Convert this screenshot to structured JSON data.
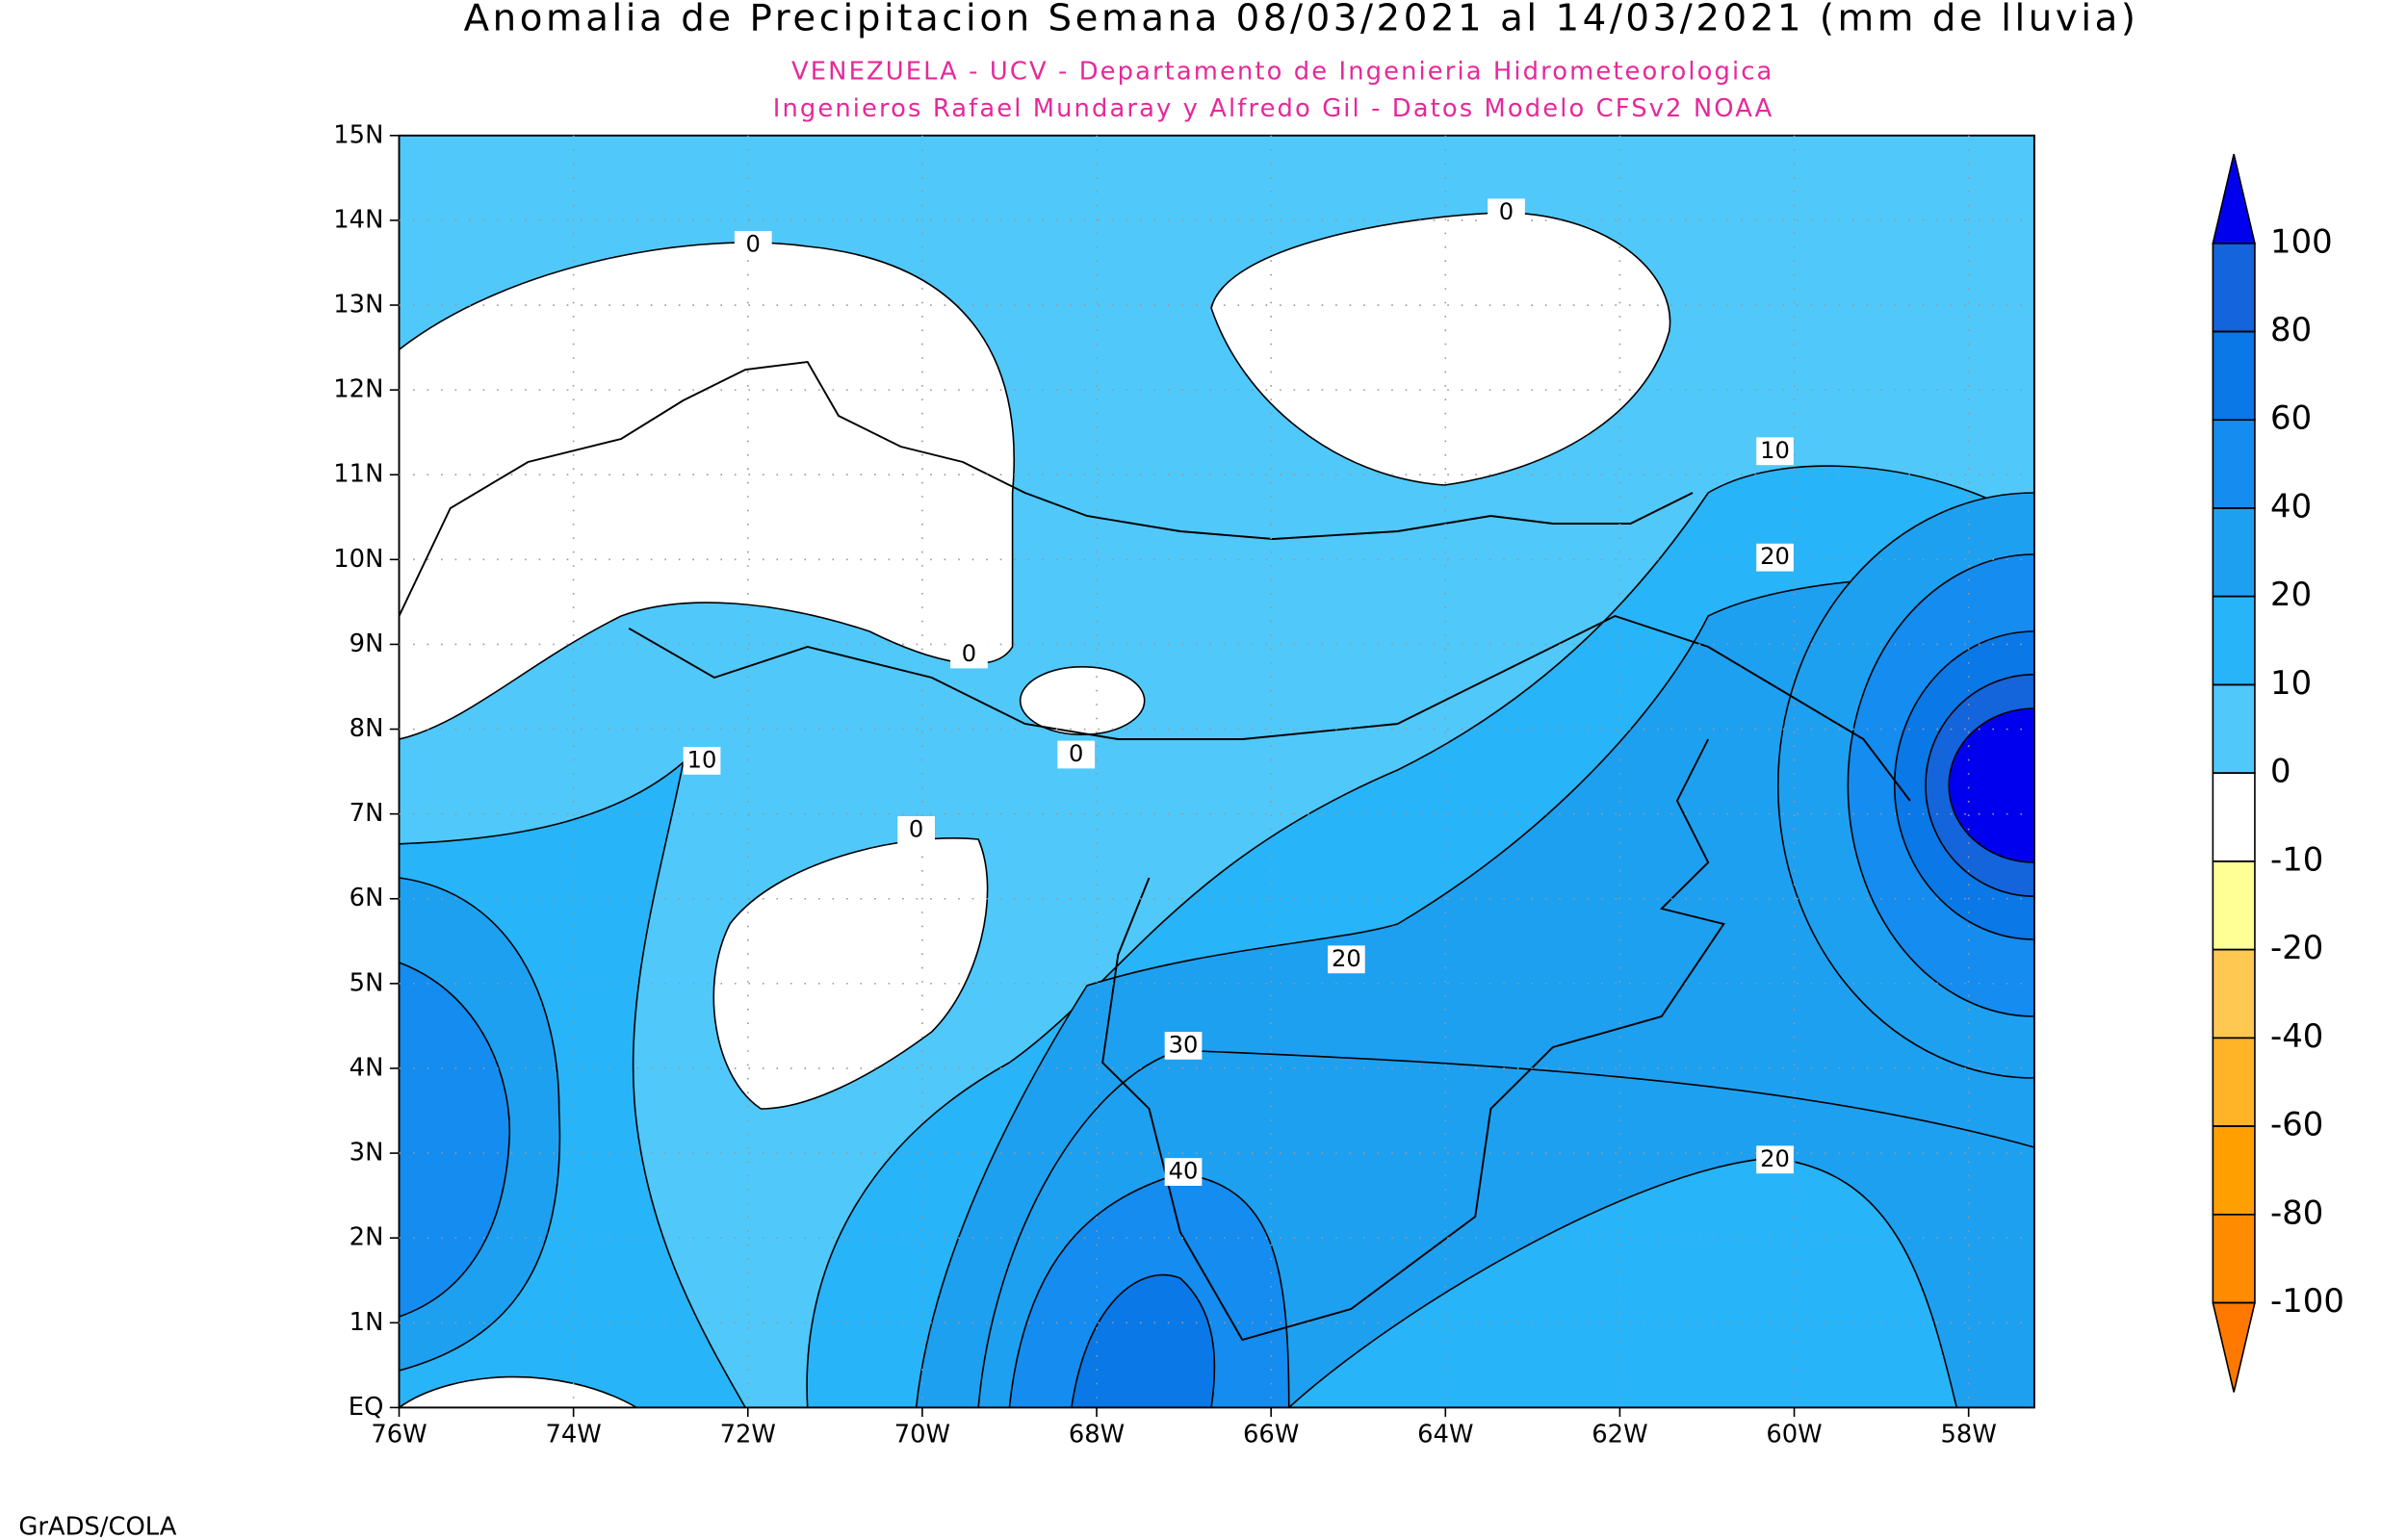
{
  "header": {
    "title": "Anomalia de Precipitacion Semana 08/03/2021 al 14/03/2021 (mm de lluvia)",
    "subtitle_lines": [
      "VENEZUELA - UCV - Departamento de Ingenieria Hidrometeorologica",
      "Ingenieros Rafael Mundaray y Alfredo Gil - Datos Modelo CFSv2 NOAA"
    ]
  },
  "map": {
    "lat_labels": [
      "15N",
      "14N",
      "13N",
      "12N",
      "11N",
      "10N",
      "9N",
      "8N",
      "7N",
      "6N",
      "5N",
      "4N",
      "3N",
      "2N",
      "1N",
      "EQ"
    ],
    "lon_labels": [
      "76W",
      "74W",
      "72W",
      "70W",
      "68W",
      "66W",
      "64W",
      "62W",
      "60W",
      "58W"
    ],
    "contour_labels": [
      0,
      0,
      10,
      20,
      0,
      0,
      10,
      0,
      20,
      30,
      40,
      20
    ]
  },
  "colorbar": {
    "levels": [
      100,
      80,
      60,
      40,
      20,
      10,
      0,
      -10,
      -20,
      -40,
      -60,
      -80,
      -100
    ],
    "colors": [
      "#0000ee",
      "#1464dc",
      "#0a78e6",
      "#148cf0",
      "#1ea0f0",
      "#28b4f8",
      "#50c8fa",
      "#ffffff",
      "#ffff96",
      "#ffc850",
      "#ffb428",
      "#ffa000",
      "#ff8c00",
      "#ff7800"
    ]
  },
  "footer": "GrADS/COLA"
}
